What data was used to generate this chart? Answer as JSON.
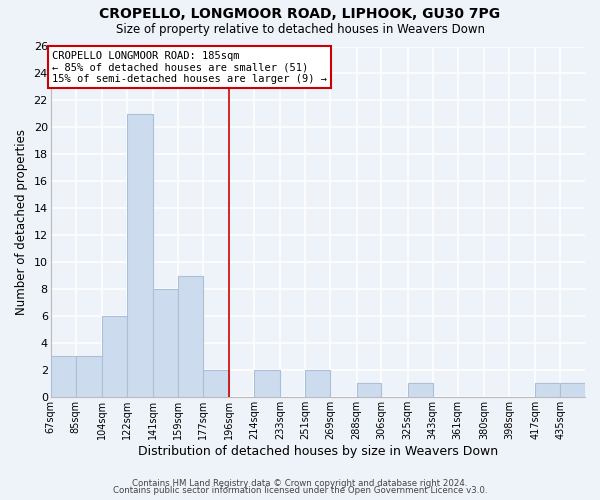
{
  "title": "CROPELLO, LONGMOOR ROAD, LIPHOOK, GU30 7PG",
  "subtitle": "Size of property relative to detached houses in Weavers Down",
  "xlabel": "Distribution of detached houses by size in Weavers Down",
  "ylabel": "Number of detached properties",
  "bin_labels": [
    "67sqm",
    "85sqm",
    "104sqm",
    "122sqm",
    "141sqm",
    "159sqm",
    "177sqm",
    "196sqm",
    "214sqm",
    "233sqm",
    "251sqm",
    "269sqm",
    "288sqm",
    "306sqm",
    "325sqm",
    "343sqm",
    "361sqm",
    "380sqm",
    "398sqm",
    "417sqm",
    "435sqm"
  ],
  "bar_heights": [
    3,
    3,
    6,
    21,
    8,
    9,
    2,
    0,
    2,
    0,
    2,
    0,
    1,
    0,
    1,
    0,
    0,
    0,
    0,
    1,
    1
  ],
  "bar_color": "#ccdcee",
  "bar_edge_color": "#a8c0d8",
  "subject_line_color": "#cc0000",
  "ylim": [
    0,
    26
  ],
  "yticks": [
    0,
    2,
    4,
    6,
    8,
    10,
    12,
    14,
    16,
    18,
    20,
    22,
    24,
    26
  ],
  "annotation_title": "CROPELLO LONGMOOR ROAD: 185sqm",
  "annotation_line1": "← 85% of detached houses are smaller (51)",
  "annotation_line2": "15% of semi-detached houses are larger (9) →",
  "footer1": "Contains HM Land Registry data © Crown copyright and database right 2024.",
  "footer2": "Contains public sector information licensed under the Open Government Licence v3.0.",
  "background_color": "#eef2f9",
  "grid_color": "#ffffff",
  "bin_edges": [
    67,
    85,
    104,
    122,
    141,
    159,
    177,
    196,
    214,
    233,
    251,
    269,
    288,
    306,
    325,
    343,
    361,
    380,
    398,
    417,
    435,
    453
  ]
}
